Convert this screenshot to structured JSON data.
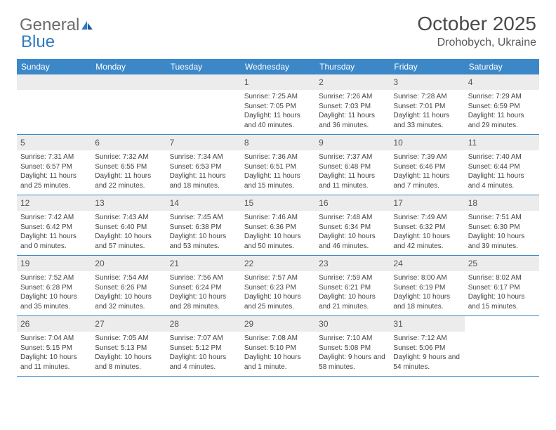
{
  "logo": {
    "part1": "General",
    "part2": "Blue"
  },
  "title": "October 2025",
  "location": "Drohobych, Ukraine",
  "colors": {
    "header_bg": "#3b87c8",
    "header_text": "#ffffff",
    "daynum_bg": "#ececec",
    "border": "#3b87c8",
    "logo_gray": "#6b6b6b",
    "logo_blue": "#2e7bc0"
  },
  "weekdays": [
    "Sunday",
    "Monday",
    "Tuesday",
    "Wednesday",
    "Thursday",
    "Friday",
    "Saturday"
  ],
  "weeks": [
    [
      {
        "day": "",
        "lines": []
      },
      {
        "day": "",
        "lines": []
      },
      {
        "day": "",
        "lines": []
      },
      {
        "day": "1",
        "lines": [
          "Sunrise: 7:25 AM",
          "Sunset: 7:05 PM",
          "Daylight: 11 hours and 40 minutes."
        ]
      },
      {
        "day": "2",
        "lines": [
          "Sunrise: 7:26 AM",
          "Sunset: 7:03 PM",
          "Daylight: 11 hours and 36 minutes."
        ]
      },
      {
        "day": "3",
        "lines": [
          "Sunrise: 7:28 AM",
          "Sunset: 7:01 PM",
          "Daylight: 11 hours and 33 minutes."
        ]
      },
      {
        "day": "4",
        "lines": [
          "Sunrise: 7:29 AM",
          "Sunset: 6:59 PM",
          "Daylight: 11 hours and 29 minutes."
        ]
      }
    ],
    [
      {
        "day": "5",
        "lines": [
          "Sunrise: 7:31 AM",
          "Sunset: 6:57 PM",
          "Daylight: 11 hours and 25 minutes."
        ]
      },
      {
        "day": "6",
        "lines": [
          "Sunrise: 7:32 AM",
          "Sunset: 6:55 PM",
          "Daylight: 11 hours and 22 minutes."
        ]
      },
      {
        "day": "7",
        "lines": [
          "Sunrise: 7:34 AM",
          "Sunset: 6:53 PM",
          "Daylight: 11 hours and 18 minutes."
        ]
      },
      {
        "day": "8",
        "lines": [
          "Sunrise: 7:36 AM",
          "Sunset: 6:51 PM",
          "Daylight: 11 hours and 15 minutes."
        ]
      },
      {
        "day": "9",
        "lines": [
          "Sunrise: 7:37 AM",
          "Sunset: 6:48 PM",
          "Daylight: 11 hours and 11 minutes."
        ]
      },
      {
        "day": "10",
        "lines": [
          "Sunrise: 7:39 AM",
          "Sunset: 6:46 PM",
          "Daylight: 11 hours and 7 minutes."
        ]
      },
      {
        "day": "11",
        "lines": [
          "Sunrise: 7:40 AM",
          "Sunset: 6:44 PM",
          "Daylight: 11 hours and 4 minutes."
        ]
      }
    ],
    [
      {
        "day": "12",
        "lines": [
          "Sunrise: 7:42 AM",
          "Sunset: 6:42 PM",
          "Daylight: 11 hours and 0 minutes."
        ]
      },
      {
        "day": "13",
        "lines": [
          "Sunrise: 7:43 AM",
          "Sunset: 6:40 PM",
          "Daylight: 10 hours and 57 minutes."
        ]
      },
      {
        "day": "14",
        "lines": [
          "Sunrise: 7:45 AM",
          "Sunset: 6:38 PM",
          "Daylight: 10 hours and 53 minutes."
        ]
      },
      {
        "day": "15",
        "lines": [
          "Sunrise: 7:46 AM",
          "Sunset: 6:36 PM",
          "Daylight: 10 hours and 50 minutes."
        ]
      },
      {
        "day": "16",
        "lines": [
          "Sunrise: 7:48 AM",
          "Sunset: 6:34 PM",
          "Daylight: 10 hours and 46 minutes."
        ]
      },
      {
        "day": "17",
        "lines": [
          "Sunrise: 7:49 AM",
          "Sunset: 6:32 PM",
          "Daylight: 10 hours and 42 minutes."
        ]
      },
      {
        "day": "18",
        "lines": [
          "Sunrise: 7:51 AM",
          "Sunset: 6:30 PM",
          "Daylight: 10 hours and 39 minutes."
        ]
      }
    ],
    [
      {
        "day": "19",
        "lines": [
          "Sunrise: 7:52 AM",
          "Sunset: 6:28 PM",
          "Daylight: 10 hours and 35 minutes."
        ]
      },
      {
        "day": "20",
        "lines": [
          "Sunrise: 7:54 AM",
          "Sunset: 6:26 PM",
          "Daylight: 10 hours and 32 minutes."
        ]
      },
      {
        "day": "21",
        "lines": [
          "Sunrise: 7:56 AM",
          "Sunset: 6:24 PM",
          "Daylight: 10 hours and 28 minutes."
        ]
      },
      {
        "day": "22",
        "lines": [
          "Sunrise: 7:57 AM",
          "Sunset: 6:23 PM",
          "Daylight: 10 hours and 25 minutes."
        ]
      },
      {
        "day": "23",
        "lines": [
          "Sunrise: 7:59 AM",
          "Sunset: 6:21 PM",
          "Daylight: 10 hours and 21 minutes."
        ]
      },
      {
        "day": "24",
        "lines": [
          "Sunrise: 8:00 AM",
          "Sunset: 6:19 PM",
          "Daylight: 10 hours and 18 minutes."
        ]
      },
      {
        "day": "25",
        "lines": [
          "Sunrise: 8:02 AM",
          "Sunset: 6:17 PM",
          "Daylight: 10 hours and 15 minutes."
        ]
      }
    ],
    [
      {
        "day": "26",
        "lines": [
          "Sunrise: 7:04 AM",
          "Sunset: 5:15 PM",
          "Daylight: 10 hours and 11 minutes."
        ]
      },
      {
        "day": "27",
        "lines": [
          "Sunrise: 7:05 AM",
          "Sunset: 5:13 PM",
          "Daylight: 10 hours and 8 minutes."
        ]
      },
      {
        "day": "28",
        "lines": [
          "Sunrise: 7:07 AM",
          "Sunset: 5:12 PM",
          "Daylight: 10 hours and 4 minutes."
        ]
      },
      {
        "day": "29",
        "lines": [
          "Sunrise: 7:08 AM",
          "Sunset: 5:10 PM",
          "Daylight: 10 hours and 1 minute."
        ]
      },
      {
        "day": "30",
        "lines": [
          "Sunrise: 7:10 AM",
          "Sunset: 5:08 PM",
          "Daylight: 9 hours and 58 minutes."
        ]
      },
      {
        "day": "31",
        "lines": [
          "Sunrise: 7:12 AM",
          "Sunset: 5:06 PM",
          "Daylight: 9 hours and 54 minutes."
        ]
      },
      {
        "day": "",
        "lines": []
      }
    ]
  ]
}
